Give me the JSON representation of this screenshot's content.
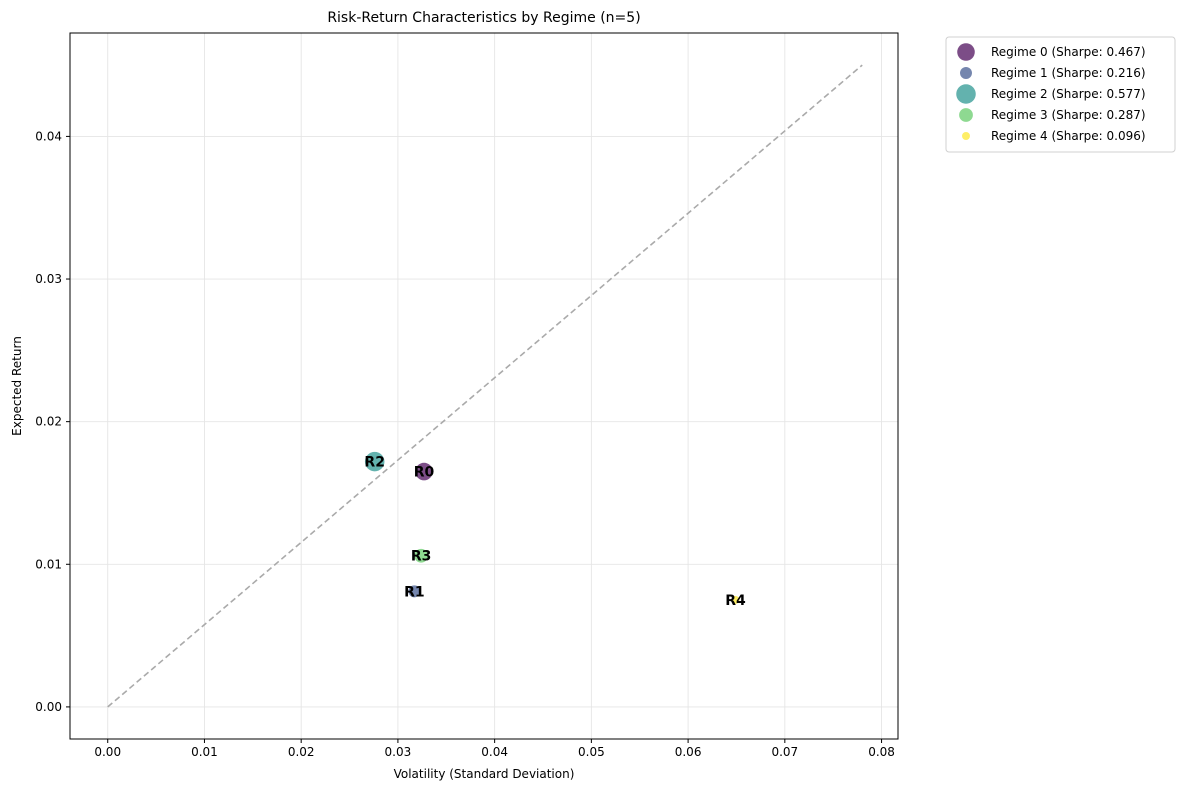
{
  "chart_data": {
    "type": "scatter",
    "title": "Risk-Return Characteristics by Regime (n=5)",
    "xlabel": "Volatility (Standard Deviation)",
    "ylabel": "Expected Return",
    "xlim": [
      -0.0039,
      0.0817
    ],
    "ylim": [
      -0.00225,
      0.04725
    ],
    "xticks": [
      0.0,
      0.01,
      0.02,
      0.03,
      0.04,
      0.05,
      0.06,
      0.07,
      0.08
    ],
    "xtick_labels": [
      "0.00",
      "0.01",
      "0.02",
      "0.03",
      "0.04",
      "0.05",
      "0.06",
      "0.07",
      "0.08"
    ],
    "yticks": [
      0.0,
      0.01,
      0.02,
      0.03,
      0.04
    ],
    "ytick_labels": [
      "0.00",
      "0.01",
      "0.02",
      "0.03",
      "0.04"
    ],
    "grid": true,
    "legend_position": "outside top-right",
    "reference_line": {
      "style": "dashed",
      "color": "#aaaaaa",
      "x": [
        0.0,
        0.078
      ],
      "y": [
        0.0,
        0.045
      ]
    },
    "series": [
      {
        "name": "Regime 0 (Sharpe: 0.467)",
        "label": "R0",
        "x": 0.0327,
        "y": 0.0165,
        "sharpe": 0.467,
        "color": "#440154"
      },
      {
        "name": "Regime 1 (Sharpe: 0.216)",
        "label": "R1",
        "x": 0.0317,
        "y": 0.0081,
        "sharpe": 0.216,
        "color": "#3b528b"
      },
      {
        "name": "Regime 2 (Sharpe: 0.577)",
        "label": "R2",
        "x": 0.0276,
        "y": 0.0172,
        "sharpe": 0.577,
        "color": "#21918c"
      },
      {
        "name": "Regime 3 (Sharpe: 0.287)",
        "label": "R3",
        "x": 0.0324,
        "y": 0.0106,
        "sharpe": 0.287,
        "color": "#5ec962"
      },
      {
        "name": "Regime 4 (Sharpe: 0.096)",
        "label": "R4",
        "x": 0.0649,
        "y": 0.0075,
        "sharpe": 0.096,
        "color": "#fde725"
      }
    ]
  }
}
